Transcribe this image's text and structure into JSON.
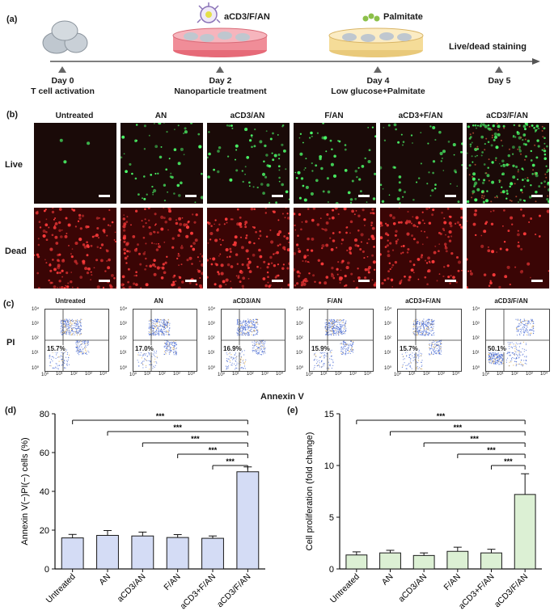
{
  "panel_a": {
    "label": "(a)",
    "events": [
      {
        "day": "Day 0",
        "desc": "T cell activation"
      },
      {
        "day": "Day 2",
        "desc": "Nanoparticle treatment"
      },
      {
        "day": "Day 4",
        "desc": "Low glucose+Palmitate"
      },
      {
        "day": "Day 5",
        "desc": ""
      }
    ],
    "dish_label_1": "aCD3/F/AN",
    "dish_label_2": "Palmitate",
    "final_label": "Live/dead staining"
  },
  "panel_b": {
    "label": "(b)",
    "columns": [
      "Untreated",
      "AN",
      "aCD3/AN",
      "F/AN",
      "aCD3+F/AN",
      "aCD3/F/AN"
    ],
    "rows": [
      "Live",
      "Dead"
    ],
    "live_intensity": [
      0.02,
      0.35,
      0.4,
      0.4,
      0.35,
      0.95
    ],
    "dead_intensity": [
      0.9,
      0.9,
      0.9,
      0.88,
      0.85,
      0.35
    ],
    "colors": {
      "live": "#4cff6a",
      "dead": "#ff3b3b",
      "bg_live": "#1a0a08",
      "bg_dead": "#3a0505"
    }
  },
  "panel_c": {
    "label": "(c)",
    "titles": [
      "Untreated",
      "AN",
      "aCD3/AN",
      "F/AN",
      "aCD3+F/AN",
      "aCD3/F/AN"
    ],
    "percentages": [
      "15.7%",
      "17.0%",
      "16.9%",
      "15.9%",
      "15.7%",
      "50.1%"
    ],
    "y_axis_label": "PI",
    "x_axis_label": "Annexin V",
    "ticks_y": [
      "10⁴",
      "10³",
      "10²",
      "10¹",
      "10⁰"
    ],
    "ticks_x": [
      "10⁰",
      "10¹",
      "10²",
      "10³",
      "10⁴"
    ]
  },
  "chart_data": [
    {
      "panel": "(d)",
      "type": "bar",
      "categories": [
        "Untreated",
        "AN",
        "aCD3/AN",
        "F/AN",
        "aCD3+F/AN",
        "aCD3/F/AN"
      ],
      "values": [
        16,
        17.3,
        17,
        16.2,
        15.8,
        50.1
      ],
      "errors": [
        1.8,
        2.5,
        2.0,
        1.5,
        1.2,
        2.5
      ],
      "ylabel": "Annexin V(−)PI(−) cells (%)",
      "ylim": [
        0,
        80
      ],
      "yticks": [
        0,
        20,
        40,
        60,
        80
      ],
      "significance": "***",
      "bar_color": "#d4dcf5",
      "edge_color": "#1a1a1a"
    },
    {
      "panel": "(e)",
      "type": "bar",
      "categories": [
        "Untreated",
        "AN",
        "aCD3/AN",
        "F/AN",
        "aCD3+F/AN",
        "aCD3/F/AN"
      ],
      "values": [
        1.35,
        1.55,
        1.3,
        1.7,
        1.55,
        7.2
      ],
      "errors": [
        0.3,
        0.25,
        0.25,
        0.4,
        0.35,
        2.0
      ],
      "ylabel": "Cell proliferation (fold change)",
      "ylim": [
        0,
        15
      ],
      "yticks": [
        0,
        5,
        10,
        15
      ],
      "significance": "***",
      "bar_color": "#dcf0d4",
      "edge_color": "#1a1a1a"
    }
  ]
}
